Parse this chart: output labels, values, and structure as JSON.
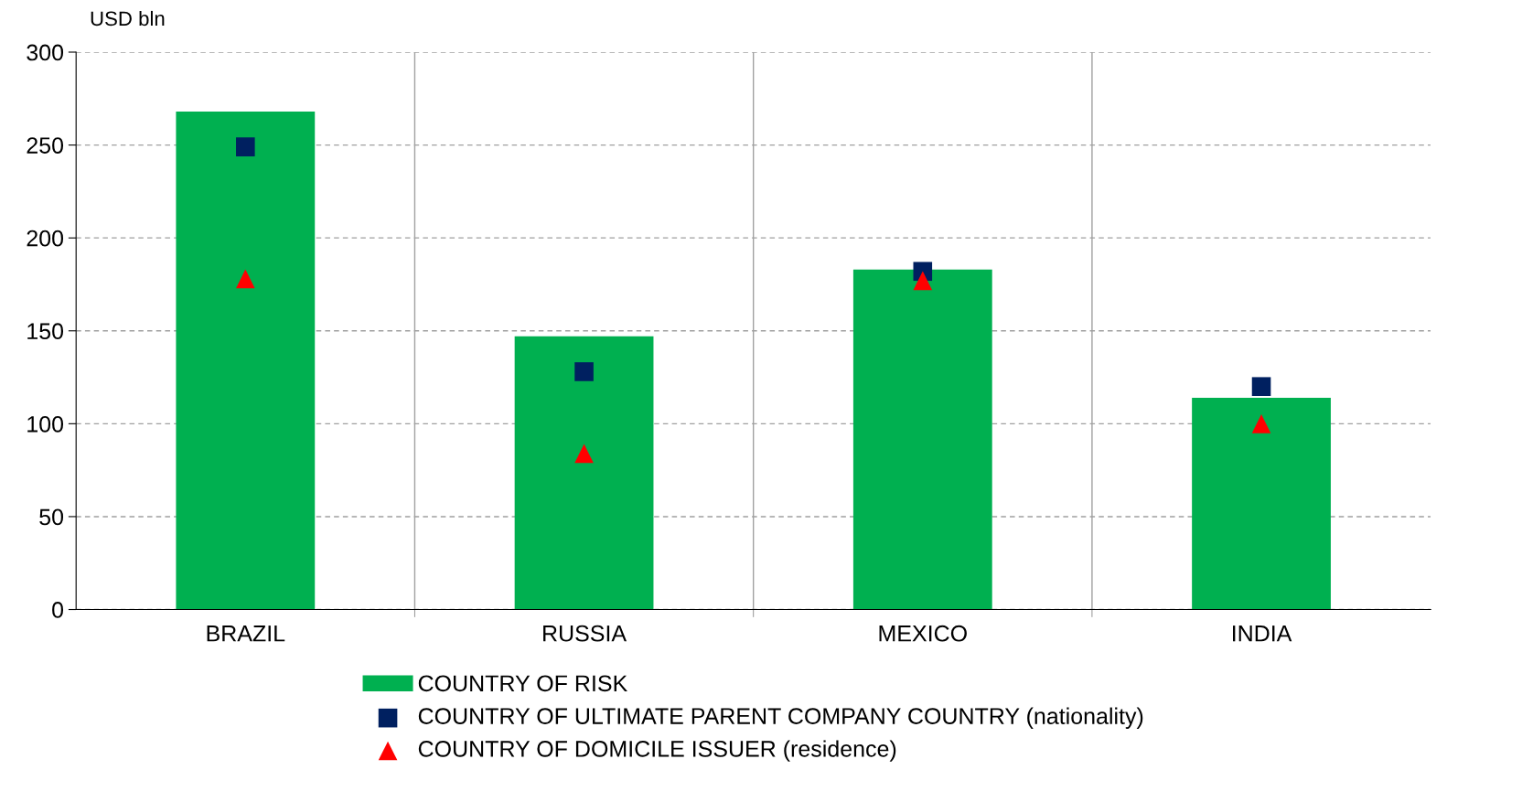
{
  "chart_data": {
    "type": "bar",
    "ylabel": "USD bln",
    "categories": [
      "BRAZIL",
      "RUSSIA",
      "MEXICO",
      "INDIA"
    ],
    "series": [
      {
        "name": "COUNTRY OF RISK",
        "color": "#00b050",
        "values": [
          268,
          147,
          183,
          114
        ]
      },
      {
        "name": "COUNTRY OF ULTIMATE PARENT COMPANY COUNTRY (nationality)",
        "type": "scatter",
        "marker": "square",
        "color": "#002060",
        "values": [
          249,
          128,
          182,
          120
        ]
      },
      {
        "name": "COUNTRY OF DOMICILE ISSUER (residence)",
        "type": "scatter",
        "marker": "triangle",
        "color": "#ff0000",
        "values": [
          178,
          84,
          177,
          100
        ]
      }
    ],
    "ylim": [
      0,
      300
    ],
    "yticks": [
      0,
      50,
      100,
      150,
      200,
      250,
      300
    ],
    "grid": "y",
    "legend": "bottom"
  }
}
